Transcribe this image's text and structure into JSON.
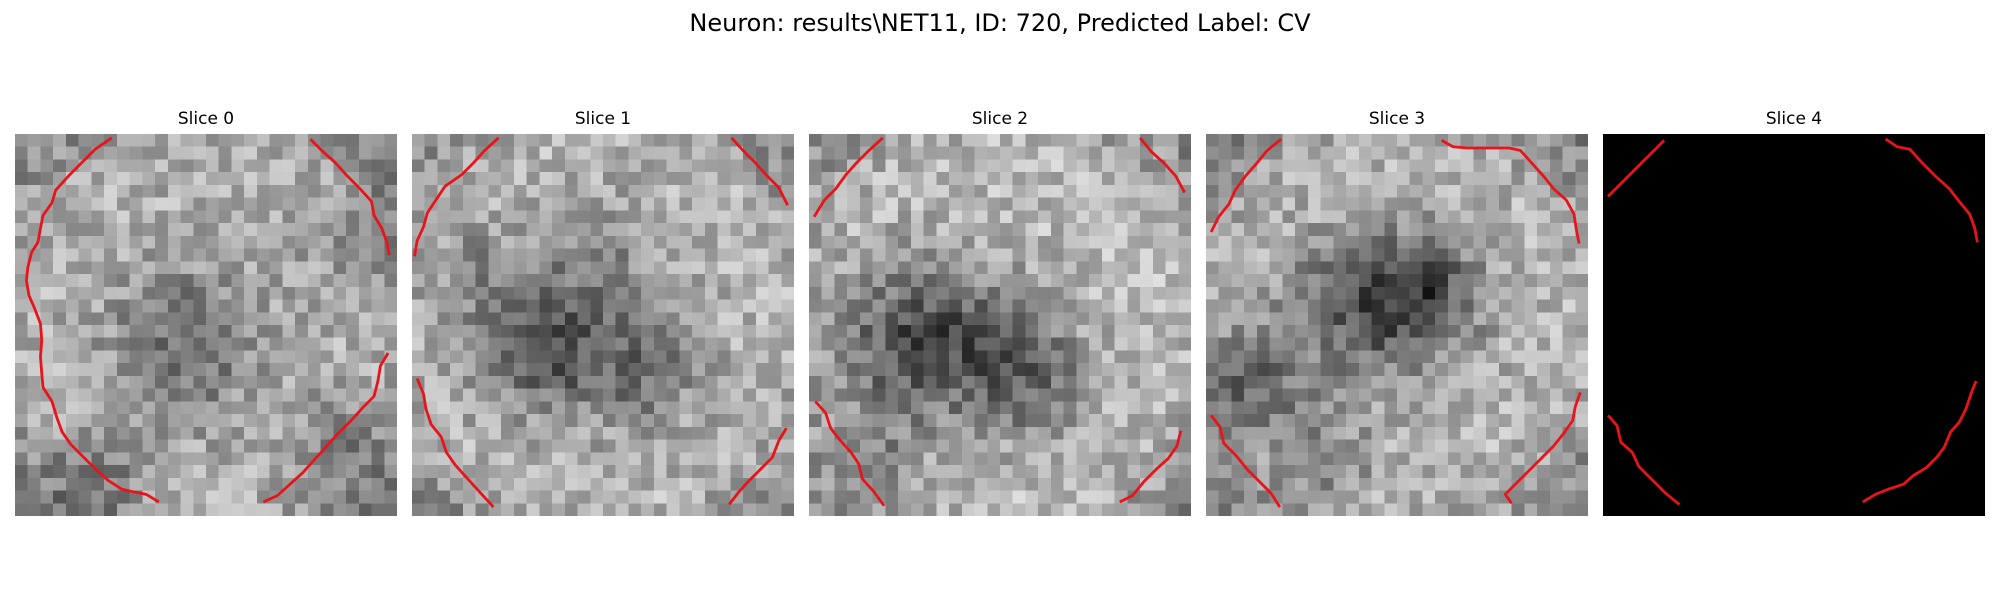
{
  "figure": {
    "suptitle": "Neuron: results\\NET11, ID: 720, Predicted Label: CV"
  },
  "panels": [
    {
      "title": "Slice 0",
      "content": "grayscale"
    },
    {
      "title": "Slice 1",
      "content": "grayscale"
    },
    {
      "title": "Slice 2",
      "content": "grayscale"
    },
    {
      "title": "Slice 3",
      "content": "grayscale"
    },
    {
      "title": "Slice 4",
      "content": "black"
    }
  ],
  "colors": {
    "contour": "#e8141c",
    "background": "#ffffff",
    "black_slice": "#000000"
  }
}
